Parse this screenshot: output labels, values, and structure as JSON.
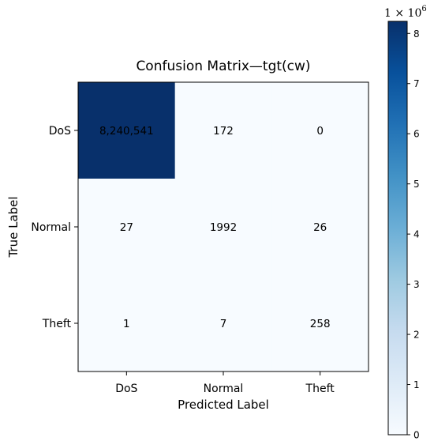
{
  "chart_data": {
    "type": "heatmap",
    "title": "Confusion Matrix—tgt(cw)",
    "xlabel": "Predicted Label",
    "ylabel": "True Label",
    "x_categories": [
      "DoS",
      "Normal",
      "Theft"
    ],
    "y_categories": [
      "DoS",
      "Normal",
      "Theft"
    ],
    "values": [
      [
        8240541,
        172,
        0
      ],
      [
        27,
        1992,
        26
      ],
      [
        1,
        7,
        258
      ]
    ],
    "cell_labels": [
      [
        "8,240,541",
        "172",
        "0"
      ],
      [
        "27",
        "1992",
        "26"
      ],
      [
        "1",
        "7",
        "258"
      ]
    ],
    "colorbar": {
      "range": [
        0,
        8240541
      ],
      "ticks": [
        0,
        1,
        2,
        3,
        4,
        5,
        6,
        7,
        8
      ],
      "tick_labels": [
        "0",
        "1",
        "2",
        "3",
        "4",
        "5",
        "6",
        "7",
        "8"
      ],
      "multiplier": "1 × 10",
      "multiplier_exponent": "6",
      "tick_scale": 1000000
    },
    "colormap": {
      "name": "Blues",
      "low": "#f7fbff",
      "high": "#08306b"
    },
    "text_colors": {
      "dark_cell": "#ffffff",
      "light_cell": "#000000"
    }
  }
}
